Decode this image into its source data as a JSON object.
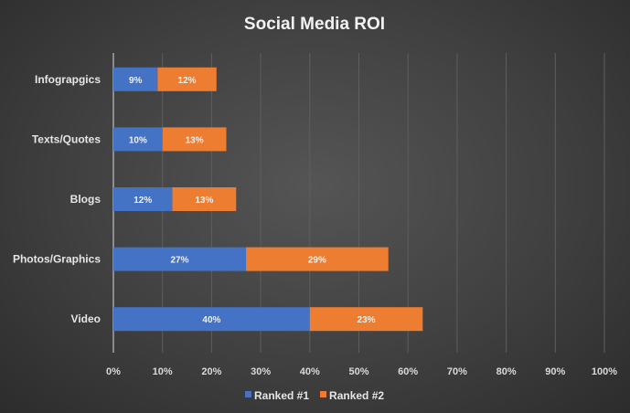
{
  "chart_data": {
    "type": "bar",
    "orientation": "horizontal",
    "stacked": true,
    "title": "Social Media ROI",
    "categories": [
      "Infograpgics",
      "Texts/Quotes",
      "Blogs",
      "Photos/Graphics",
      "Video"
    ],
    "series": [
      {
        "name": "Ranked #1",
        "color": "#4472C4",
        "values": [
          9,
          10,
          12,
          27,
          40
        ],
        "labels": [
          "9%",
          "10%",
          "12%",
          "27%",
          "40%"
        ]
      },
      {
        "name": "Ranked #2",
        "color": "#ED7D31",
        "values": [
          12,
          13,
          13,
          29,
          23
        ],
        "labels": [
          "12%",
          "13%",
          "13%",
          "29%",
          "23%"
        ]
      }
    ],
    "xlim": [
      0,
      100
    ],
    "xticks": [
      "0%",
      "10%",
      "20%",
      "30%",
      "40%",
      "50%",
      "60%",
      "70%",
      "80%",
      "90%",
      "100%"
    ],
    "grid": "vertical",
    "legend": "bottom",
    "background": "#404040"
  }
}
